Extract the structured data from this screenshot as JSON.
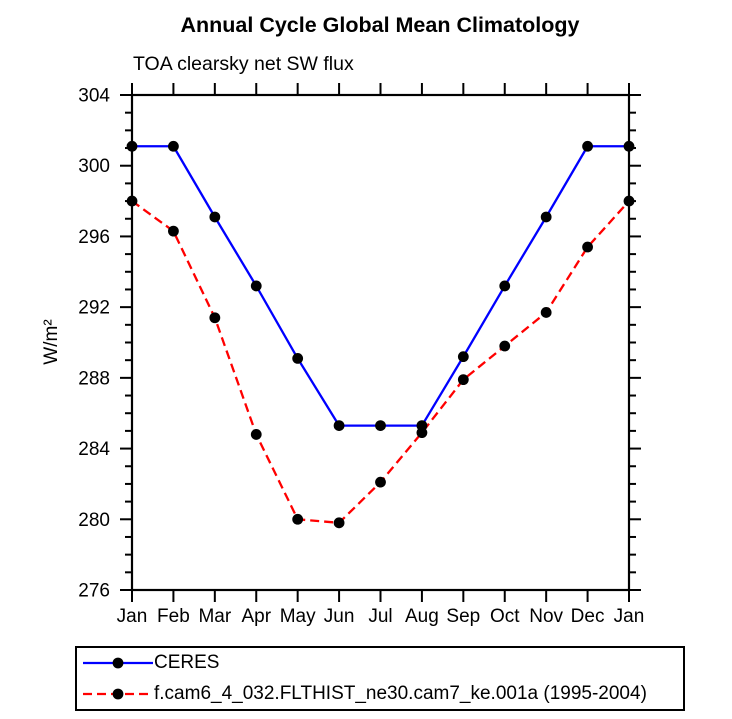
{
  "chart_data": {
    "type": "line",
    "title": "Annual Cycle Global Mean Climatology",
    "subtitle": "TOA clearsky net SW flux",
    "ylabel": "W/m²",
    "xlabel": "",
    "categories": [
      "Jan",
      "Feb",
      "Mar",
      "Apr",
      "May",
      "Jun",
      "Jul",
      "Aug",
      "Sep",
      "Oct",
      "Nov",
      "Dec",
      "Jan"
    ],
    "ylim": [
      276,
      304
    ],
    "yticks_major": [
      276,
      280,
      284,
      288,
      292,
      296,
      300,
      304
    ],
    "minor_tick_step": 1,
    "grid": false,
    "legend_position": "bottom-left-box",
    "series": [
      {
        "name": "CERES",
        "color": "#0000ff",
        "line_style": "solid",
        "marker": "circle",
        "marker_color": "#000000",
        "values": [
          301.1,
          301.1,
          297.1,
          293.2,
          289.1,
          285.3,
          285.3,
          285.3,
          289.2,
          293.2,
          297.1,
          301.1,
          301.1
        ]
      },
      {
        "name": "f.cam6_4_032.FLTHIST_ne30.cam7_ke.001a (1995-2004)",
        "color": "#ff0000",
        "line_style": "dashed",
        "marker": "circle",
        "marker_color": "#000000",
        "values": [
          298.0,
          296.3,
          291.4,
          284.8,
          280.0,
          279.8,
          282.1,
          284.9,
          287.9,
          289.8,
          291.7,
          295.4,
          298.0
        ]
      }
    ]
  },
  "colors": {
    "axis": "#000000",
    "background": "#ffffff"
  }
}
